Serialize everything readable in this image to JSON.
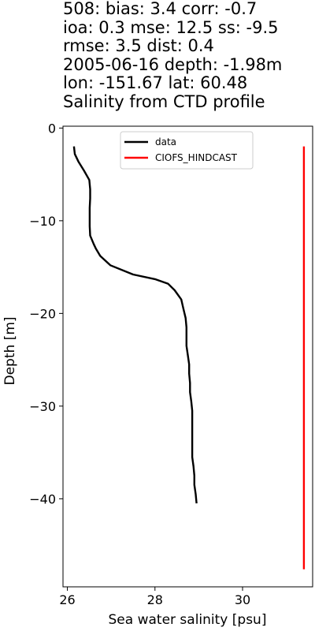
{
  "header": {
    "lines": [
      "508: bias: 3.4  corr: -0.7",
      "ioa: 0.3  mse: 12.5  ss: -9.5",
      "rmse: 3.5  dist: 0.4",
      "2005-06-16 depth: -1.98m",
      "lon: -151.67 lat: 60.48",
      "Salinity from CTD profile"
    ]
  },
  "chart_data": {
    "type": "line",
    "title": "Salinity from CTD profile",
    "xlabel": "Sea water salinity [psu]",
    "ylabel": "Depth [m]",
    "xlim": [
      25.9,
      31.6
    ],
    "ylim": [
      -49.5,
      0.2
    ],
    "xticks": [
      26,
      28,
      30
    ],
    "yticks": [
      0,
      -10,
      -20,
      -30,
      -40
    ],
    "xtick_labels": [
      "26",
      "28",
      "30"
    ],
    "ytick_labels": [
      "0",
      "−10",
      "−20",
      "−30",
      "−40"
    ],
    "grid": false,
    "legend": {
      "placement": "top-center"
    },
    "series": [
      {
        "name": "data",
        "color": "#000000",
        "x": [
          26.15,
          26.17,
          26.25,
          26.38,
          26.5,
          26.52,
          26.52,
          26.51,
          26.51,
          26.51,
          26.52,
          26.6,
          26.65,
          26.75,
          26.98,
          27.5,
          28.0,
          28.3,
          28.45,
          28.6,
          28.65,
          28.7,
          28.72,
          28.72,
          28.72,
          28.75,
          28.78,
          28.78,
          28.8,
          28.8,
          28.83,
          28.85,
          28.85,
          28.85,
          28.85,
          28.85,
          28.85,
          28.88,
          28.9,
          28.9,
          28.93,
          28.95
        ],
        "y": [
          -1.98,
          -2.8,
          -3.6,
          -4.6,
          -5.6,
          -6.6,
          -7.6,
          -8.6,
          -9.6,
          -10.6,
          -11.6,
          -12.5,
          -13.0,
          -13.8,
          -14.8,
          -15.8,
          -16.3,
          -16.8,
          -17.5,
          -18.5,
          -19.5,
          -20.5,
          -21.5,
          -22.5,
          -23.5,
          -24.5,
          -25.5,
          -26.5,
          -27.5,
          -28.5,
          -29.5,
          -30.5,
          -31.5,
          -32.5,
          -33.5,
          -34.5,
          -35.5,
          -36.5,
          -37.5,
          -38.5,
          -39.5,
          -40.5
        ]
      },
      {
        "name": "CIOFS_HINDCAST",
        "color": "#ff0000",
        "x": [
          31.4,
          31.4
        ],
        "y": [
          -1.98,
          -47.6
        ]
      }
    ]
  }
}
